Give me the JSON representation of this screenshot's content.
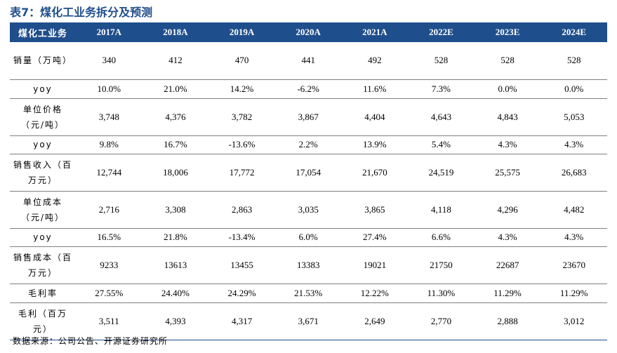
{
  "title": "表7：煤化工业务拆分及预测",
  "header": {
    "row_label": "煤化工业务",
    "columns": [
      "2017A",
      "2018A",
      "2019A",
      "2020A",
      "2021A",
      "2022E",
      "2023E",
      "2024E"
    ]
  },
  "rows": [
    {
      "label": "销量（万吨）",
      "values": [
        "340",
        "412",
        "470",
        "441",
        "492",
        "528",
        "528",
        "528"
      ]
    },
    {
      "label": "yoy",
      "values": [
        "10.0%",
        "21.0%",
        "14.2%",
        "-6.2%",
        "11.6%",
        "7.3%",
        "0.0%",
        "0.0%"
      ]
    },
    {
      "label": "单位价格（元/吨）",
      "values": [
        "3,748",
        "4,376",
        "3,782",
        "3,867",
        "4,404",
        "4,643",
        "4,843",
        "5,053"
      ]
    },
    {
      "label": "yoy",
      "values": [
        "9.8%",
        "16.7%",
        "-13.6%",
        "2.2%",
        "13.9%",
        "5.4%",
        "4.3%",
        "4.3%"
      ]
    },
    {
      "label": "销售收入（百万元）",
      "values": [
        "12,744",
        "18,006",
        "17,772",
        "17,054",
        "21,670",
        "24,519",
        "25,575",
        "26,683"
      ]
    },
    {
      "label": "单位成本（元/吨）",
      "values": [
        "2,716",
        "3,308",
        "2,863",
        "3,035",
        "3,865",
        "4,118",
        "4,296",
        "4,482"
      ]
    },
    {
      "label": "yoy",
      "values": [
        "16.5%",
        "21.8%",
        "-13.4%",
        "6.0%",
        "27.4%",
        "6.6%",
        "4.3%",
        "4.3%"
      ]
    },
    {
      "label": "销售成本（百万元）",
      "values": [
        "9233",
        "13613",
        "13455",
        "13383",
        "19021",
        "21750",
        "22687",
        "23670"
      ]
    },
    {
      "label": "毛利率",
      "values": [
        "27.55%",
        "24.40%",
        "24.29%",
        "21.53%",
        "12.22%",
        "11.30%",
        "11.29%",
        "11.29%"
      ]
    },
    {
      "label": "毛利（百万元）",
      "values": [
        "3,511",
        "4,393",
        "4,317",
        "3,671",
        "2,649",
        "2,770",
        "2,888",
        "3,012"
      ]
    }
  ],
  "source": "数据来源：公司公告、开源证券研究所",
  "colors": {
    "header_bg": "#1f4e8c",
    "header_text": "#ffffff",
    "title": "#1f4e8c"
  }
}
